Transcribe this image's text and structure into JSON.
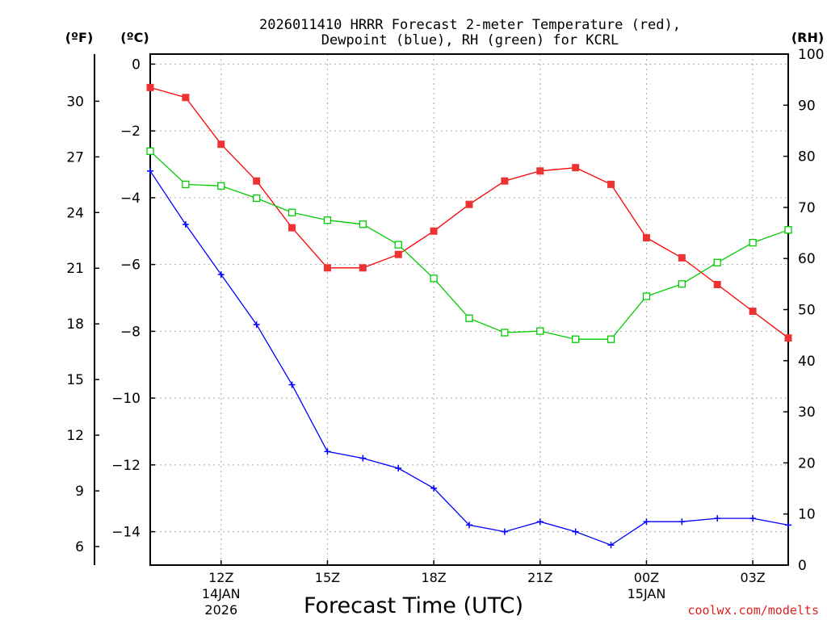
{
  "chart_data": {
    "type": "line",
    "title_line1": "2026011410 HRRR Forecast 2-meter Temperature (red),",
    "title_line2": "Dewpoint (blue), RH (green) for KCRL",
    "xlabel": "Forecast Time (UTC)",
    "left_axis_f_label": "(ºF)",
    "left_axis_c_label": "(ºC)",
    "right_axis_label": "(RH)",
    "watermark": "coolwx.com/modelts",
    "x_hours": [
      10,
      11,
      12,
      13,
      14,
      15,
      16,
      17,
      18,
      19,
      20,
      21,
      22,
      23,
      24,
      25,
      26,
      27,
      28
    ],
    "xlim": [
      10,
      28
    ],
    "ylim_c": [
      -15,
      0.3
    ],
    "ylim_rh": [
      0,
      100
    ],
    "celsius_ticks": [
      "0",
      "−2",
      "−4",
      "−6",
      "−8",
      "−10",
      "−12",
      "−14"
    ],
    "fahrenheit_ticks": [
      "30",
      "27",
      "24",
      "21",
      "18",
      "15",
      "12",
      "9",
      "6"
    ],
    "rh_ticks": [
      "100",
      "90",
      "80",
      "70",
      "60",
      "50",
      "40",
      "30",
      "20",
      "10",
      "0"
    ],
    "x_ticks": [
      {
        "hour": 12,
        "label": "12Z",
        "sub1": "14JAN",
        "sub2": "2026"
      },
      {
        "hour": 15,
        "label": "15Z",
        "sub1": "",
        "sub2": ""
      },
      {
        "hour": 18,
        "label": "18Z",
        "sub1": "",
        "sub2": ""
      },
      {
        "hour": 21,
        "label": "21Z",
        "sub1": "",
        "sub2": ""
      },
      {
        "hour": 24,
        "label": "00Z",
        "sub1": "15JAN",
        "sub2": ""
      },
      {
        "hour": 27,
        "label": "03Z",
        "sub1": "",
        "sub2": ""
      }
    ],
    "series": [
      {
        "name": "Temperature",
        "units": "C",
        "color": "#ff0000",
        "values": [
          -0.7,
          -1.0,
          -2.4,
          -3.5,
          -4.9,
          -6.1,
          -6.1,
          -5.7,
          -5.0,
          -4.2,
          -3.5,
          -3.2,
          -3.1,
          -3.6,
          -5.2,
          -5.8,
          -6.6,
          -7.4,
          -8.2
        ]
      },
      {
        "name": "Dewpoint",
        "units": "C",
        "color": "#0000ff",
        "values": [
          -3.2,
          -4.8,
          -6.3,
          -7.8,
          -9.6,
          -11.6,
          -11.8,
          -12.1,
          -12.7,
          -13.8,
          -14.0,
          -13.7,
          -14.0,
          -14.4,
          -13.7,
          -13.7,
          -13.6,
          -13.6,
          -13.8
        ]
      },
      {
        "name": "RH",
        "units": "%",
        "color": "#00cc00",
        "values": [
          81,
          74.5,
          74.2,
          71.8,
          69,
          67.5,
          66.7,
          62.7,
          56.1,
          48.3,
          45.5,
          45.8,
          44.2,
          44.2,
          52.6,
          55.0,
          59.2,
          63.1,
          65.6
        ]
      }
    ]
  }
}
